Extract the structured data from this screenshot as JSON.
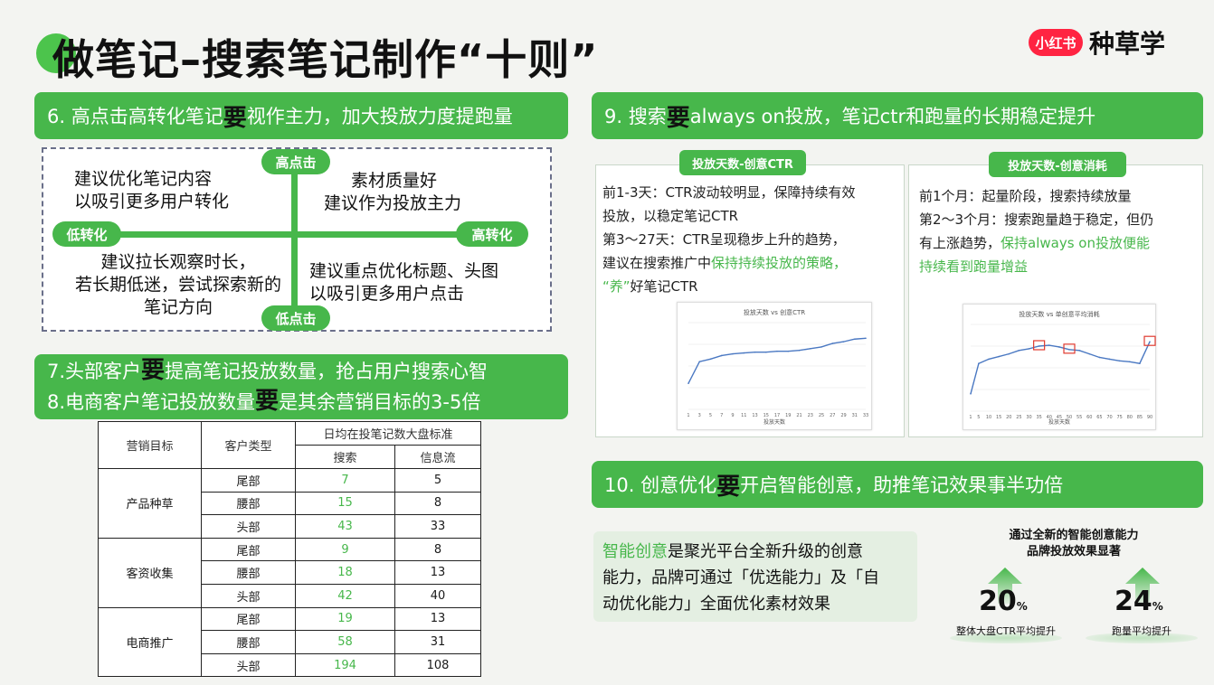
{
  "title": "做笔记–搜索笔记制作“十则”",
  "logo": {
    "badge": "小红书",
    "text": "种草学"
  },
  "section6": {
    "prefix": "6. 高点击高转化笔记",
    "big": "要",
    "suffix": "视作主力，加大投放力度提跑量",
    "quadrant": {
      "top": "高点击",
      "bottom": "低点击",
      "left": "低转化",
      "right": "高转化",
      "tl": [
        "建议优化笔记内容",
        "以吸引更多用户转化"
      ],
      "tr": [
        "素材质量好",
        "建议作为投放主力"
      ],
      "bl": [
        "建议拉长观察时长，",
        "若长期低迷，尝试探索新的",
        "笔记方向"
      ],
      "br": [
        "建议重点优化标题、头图",
        "以吸引更多用户点击"
      ]
    }
  },
  "section78": {
    "line1": {
      "prefix": "7.头部客户",
      "big": "要",
      "suffix": "提高笔记投放数量，抢占用户搜索心智"
    },
    "line2": {
      "prefix": "8.电商客户笔记投放数量",
      "big": "要",
      "suffix": "是其余营销目标的3-5倍"
    }
  },
  "table": {
    "headers": {
      "goal": "营销目标",
      "type": "客户类型",
      "group": "日均在投笔记数大盘标准",
      "search": "搜索",
      "feed": "信息流"
    },
    "groups": [
      {
        "goal": "产品种草",
        "rows": [
          {
            "type": "尾部",
            "search": "7",
            "feed": "5"
          },
          {
            "type": "腰部",
            "search": "15",
            "feed": "8"
          },
          {
            "type": "头部",
            "search": "43",
            "feed": "33"
          }
        ]
      },
      {
        "goal": "客资收集",
        "rows": [
          {
            "type": "尾部",
            "search": "9",
            "feed": "8"
          },
          {
            "type": "腰部",
            "search": "18",
            "feed": "13"
          },
          {
            "type": "头部",
            "search": "42",
            "feed": "40"
          }
        ]
      },
      {
        "goal": "电商推广",
        "rows": [
          {
            "type": "尾部",
            "search": "19",
            "feed": "13"
          },
          {
            "type": "腰部",
            "search": "58",
            "feed": "31"
          },
          {
            "type": "头部",
            "search": "194",
            "feed": "108"
          }
        ]
      }
    ]
  },
  "section9": {
    "prefix": "9. 搜索",
    "big": "要",
    "suffix": "always on投放，笔记ctr和跑量的长期稳定提升",
    "left": {
      "tab": "投放天数-创意CTR",
      "l1": "前1-3天：CTR波动较明显，保障持续有效",
      "l2": "投放，以稳定笔记CTR",
      "l3": "第3～27天：CTR呈现稳步上升的趋势，",
      "l4a": "建议在搜索推广中",
      "l4b": "保持持续投放的策略，",
      "l5a": "“养”",
      "l5b": "好笔记CTR",
      "chart_title": "投放天数 vs 创意CTR",
      "chart_xlabel": "投放天数"
    },
    "right": {
      "tab": "投放天数-创意消耗",
      "l1": "前1个月：起量阶段，搜索持续放量",
      "l2": "第2～3个月：搜索跑量趋于稳定，但仍",
      "l3a": "有上涨趋势，",
      "l3b": "保持always  on投放便能",
      "l4": "持续看到跑量增益",
      "chart_title": "投放天数 vs 单创意平均消耗",
      "chart_xlabel": "投放天数"
    }
  },
  "section10": {
    "prefix": "10. 创意优化",
    "big": "要",
    "suffix": "开启智能创意，助推笔记效果事半功倍",
    "info": {
      "g": "智能创意",
      "t1": "是聚光平台全新升级的创意",
      "t2": "能力，品牌可通过「优选能力」及「自",
      "t3": "动优化能力」全面优化素材效果"
    },
    "stat_title": [
      "通过全新的智能创意能力",
      "品牌投放效果显著"
    ],
    "stats": [
      {
        "value": "20",
        "unit": "%",
        "caption": "整体大盘CTR平均提升"
      },
      {
        "value": "24",
        "unit": "%",
        "caption": "跑量平均提升"
      }
    ]
  },
  "chart_data": [
    {
      "type": "line",
      "title": "投放天数 vs 创意CTR",
      "xlabel": "投放天数",
      "ylabel": "",
      "x": [
        1,
        3,
        5,
        7,
        9,
        11,
        13,
        15,
        17,
        19,
        21,
        23,
        25,
        27,
        29,
        31,
        33
      ],
      "series": [
        {
          "values": [
            0.3,
            0.55,
            0.58,
            0.62,
            0.64,
            0.65,
            0.66,
            0.66,
            0.67,
            0.67,
            0.68,
            0.7,
            0.72,
            0.76,
            0.78,
            0.81,
            0.82
          ]
        }
      ],
      "ylim": [
        0,
        1
      ],
      "grid": true
    },
    {
      "type": "line",
      "title": "投放天数 vs 单创意平均消耗",
      "xlabel": "投放天数",
      "ylabel": "",
      "x": [
        1,
        5,
        10,
        15,
        20,
        25,
        30,
        35,
        40,
        45,
        50,
        55,
        60,
        65,
        70,
        75,
        80,
        85,
        90
      ],
      "series": [
        {
          "values": [
            0.2,
            0.55,
            0.6,
            0.63,
            0.66,
            0.7,
            0.72,
            0.75,
            0.76,
            0.74,
            0.71,
            0.7,
            0.66,
            0.62,
            0.6,
            0.58,
            0.57,
            0.55,
            0.8
          ]
        }
      ],
      "ylim": [
        0,
        1
      ],
      "grid": true
    }
  ]
}
